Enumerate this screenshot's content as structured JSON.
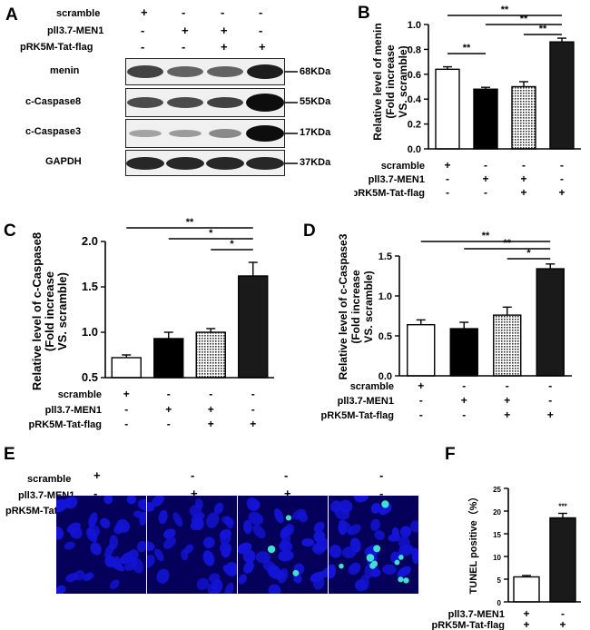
{
  "panels": {
    "A": "A",
    "B": "B",
    "C": "C",
    "D": "D",
    "E": "E",
    "F": "F"
  },
  "conditions": {
    "row1": "scramble",
    "row2": "pll3.7-MEN1",
    "row3": "pRK5M-Tat-flag",
    "row3_alt": "pRK5M-Tat-flag",
    "row3_alt2": "pRK5M-Tat-flag"
  },
  "conditions_B": [
    "scramble",
    "pll3.7-MEN1",
    "pRK5M-Tat-flag"
  ],
  "conditions_C": [
    "scramble",
    "pll3.7-MEN1",
    "pRK5M-Tat-flag"
  ],
  "conditions_D": [
    "scramble",
    "pll3.7-MEN1",
    "pRK5M-Tat-flag"
  ],
  "conditions_E": [
    "scramble",
    "pll3.7-MEN1",
    "pRK5M-Tat-flag"
  ],
  "conditions_F": [
    "pll3.7-MEN1",
    "pRK5M-Tat-flag"
  ],
  "signs": {
    "scramble": [
      "+",
      "-",
      "-",
      "-"
    ],
    "men1": [
      "-",
      "+",
      "+",
      "-"
    ],
    "tat": [
      "-",
      "-",
      "+",
      "+"
    ],
    "F_men1": [
      "+",
      "-"
    ],
    "F_tat": [
      "+",
      "+"
    ]
  },
  "blot": {
    "rows": [
      {
        "protein": "menin",
        "kda": "68KDa"
      },
      {
        "protein": "c-Caspase8",
        "kda": "55KDa"
      },
      {
        "protein": "c-Caspase3",
        "kda": "17KDa"
      },
      {
        "protein": "GAPDH",
        "kda": "37KDa"
      }
    ]
  },
  "chart_data": [
    {
      "panel": "B",
      "type": "bar",
      "categories": [
        "1",
        "2",
        "3",
        "4"
      ],
      "values": [
        0.64,
        0.48,
        0.5,
        0.86
      ],
      "errors": [
        0.02,
        0.015,
        0.04,
        0.03
      ],
      "ylabel": "Relative level of menin (Fold increase VS. scramble)",
      "ylim": [
        0,
        1.0
      ],
      "yticks": [
        "0.0",
        "0.2",
        "0.4",
        "0.6",
        "0.8",
        "1.0"
      ],
      "significance": [
        "**",
        "**",
        "**",
        "**"
      ]
    },
    {
      "panel": "C",
      "type": "bar",
      "categories": [
        "1",
        "2",
        "3",
        "4"
      ],
      "values": [
        0.72,
        0.93,
        1.0,
        1.62
      ],
      "errors": [
        0.03,
        0.07,
        0.04,
        0.15
      ],
      "ylabel": "Relative level of c-Caspase8 (Fold increase VS. scramble)",
      "ylim": [
        0,
        2.0
      ],
      "yticks": [
        "0.5",
        "1.0",
        "1.5",
        "2.0"
      ],
      "significance": [
        "**",
        "*",
        "*"
      ]
    },
    {
      "panel": "D",
      "type": "bar",
      "categories": [
        "1",
        "2",
        "3",
        "4"
      ],
      "values": [
        0.64,
        0.59,
        0.76,
        1.34
      ],
      "errors": [
        0.06,
        0.08,
        0.1,
        0.06
      ],
      "ylabel": "Relative level of c-Caspase3 (Fold increase VS. scramble)",
      "ylim": [
        0,
        1.5
      ],
      "yticks": [
        "0.0",
        "0.5",
        "1.0",
        "1.5"
      ],
      "significance": [
        "**",
        "**",
        "*"
      ]
    },
    {
      "panel": "F",
      "type": "bar",
      "categories": [
        "1",
        "2"
      ],
      "values": [
        5.5,
        18.5
      ],
      "errors": [
        0.3,
        1.0
      ],
      "ylabel": "TUNEL positive (%)",
      "ylim": [
        0,
        25
      ],
      "yticks": [
        "0",
        "5",
        "10",
        "15",
        "20",
        "25"
      ],
      "significance": [
        "***"
      ]
    }
  ],
  "fills": {
    "white": "#ffffff",
    "check": "checker",
    "dots": "dots",
    "black": "#1a1a1a"
  },
  "fluo_color": "#05005a",
  "nucleus_color": "#1414d8",
  "tunel_color": "#40e0d0"
}
